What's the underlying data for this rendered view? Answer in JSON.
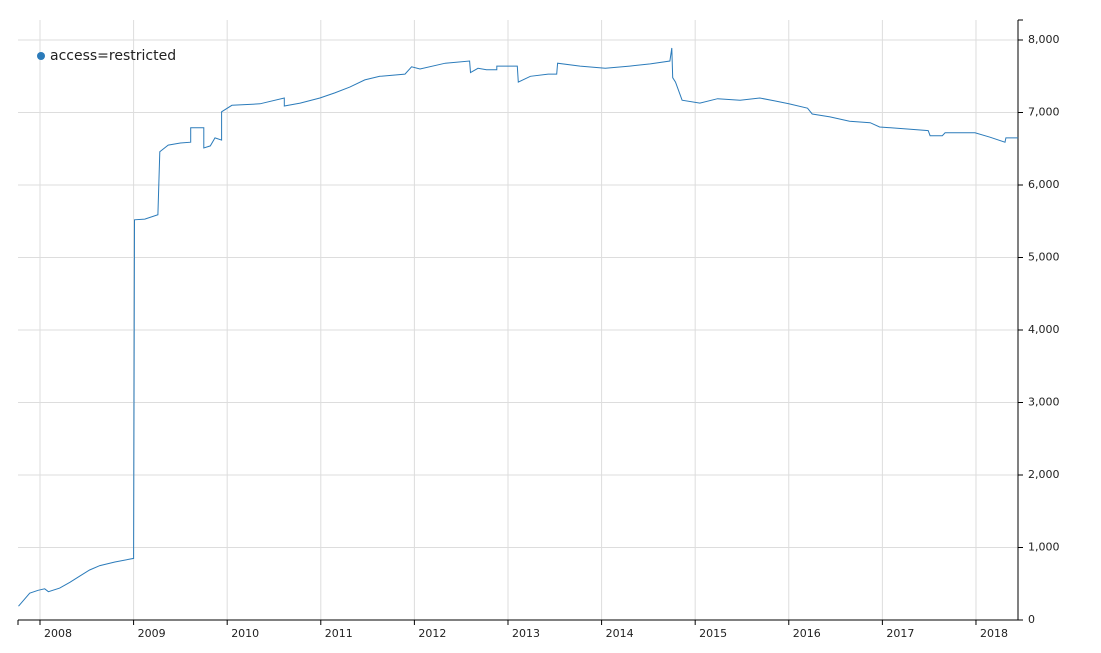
{
  "chart_data": {
    "type": "line",
    "series": [
      {
        "name": "access=restricted",
        "color": "#2b7bba",
        "x": [
          2007.77,
          2007.89,
          2007.98,
          2008.05,
          2008.09,
          2008.21,
          2008.32,
          2008.43,
          2008.53,
          2008.64,
          2008.8,
          2009.0,
          2009.01,
          2009.12,
          2009.26,
          2009.28,
          2009.37,
          2009.5,
          2009.61,
          2009.61,
          2009.71,
          2009.75,
          2009.75,
          2009.82,
          2009.87,
          2009.94,
          2009.94,
          2010.05,
          2010.35,
          2010.61,
          2010.61,
          2010.78,
          2010.99,
          2011.15,
          2011.31,
          2011.47,
          2011.63,
          2011.9,
          2011.97,
          2012.06,
          2012.33,
          2012.59,
          2012.6,
          2012.68,
          2012.77,
          2012.88,
          2012.88,
          2013.1,
          2013.11,
          2013.24,
          2013.43,
          2013.52,
          2013.53,
          2013.77,
          2014.04,
          2014.3,
          2014.52,
          2014.73,
          2014.75,
          2014.76,
          2014.79,
          2014.86,
          2015.05,
          2015.24,
          2015.48,
          2015.69,
          2015.85,
          2016.0,
          2016.2,
          2016.25,
          2016.44,
          2016.65,
          2016.87,
          2016.97,
          2017.3,
          2017.49,
          2017.51,
          2017.64,
          2017.67,
          2017.99,
          2018.15,
          2018.31,
          2018.32,
          2018.45
        ],
        "values": [
          190,
          370,
          410,
          430,
          390,
          440,
          520,
          610,
          690,
          750,
          800,
          850,
          5520,
          5530,
          5590,
          6460,
          6550,
          6580,
          6590,
          6790,
          6790,
          6790,
          6510,
          6540,
          6650,
          6620,
          7010,
          7100,
          7120,
          7200,
          7090,
          7130,
          7200,
          7270,
          7350,
          7450,
          7500,
          7530,
          7630,
          7600,
          7680,
          7710,
          7550,
          7610,
          7590,
          7590,
          7640,
          7640,
          7420,
          7500,
          7530,
          7530,
          7680,
          7640,
          7610,
          7640,
          7670,
          7710,
          7890,
          7480,
          7420,
          7170,
          7130,
          7190,
          7170,
          7200,
          7160,
          7120,
          7060,
          6980,
          6940,
          6880,
          6860,
          6800,
          6770,
          6750,
          6680,
          6680,
          6720,
          6720,
          6660,
          6590,
          6650,
          6650
        ]
      }
    ],
    "xlim": [
      2007.765,
      2018.449
    ],
    "xticks": [
      2008,
      2009,
      2010,
      2011,
      2012,
      2013,
      2014,
      2015,
      2016,
      2017,
      2018
    ],
    "ylim": [
      0,
      8276
    ],
    "yticks": [
      0,
      {
        "value": 1000,
        "label": "1,000"
      },
      {
        "value": 2000,
        "label": "2,000"
      },
      {
        "value": 3000,
        "label": "3,000"
      },
      {
        "value": 4000,
        "label": "4,000"
      },
      {
        "value": 5000,
        "label": "5,000"
      },
      {
        "value": 6000,
        "label": "6,000"
      },
      {
        "value": 7000,
        "label": "7,000"
      },
      {
        "value": 8000,
        "label": "8,000"
      }
    ],
    "grid": true,
    "legend": "upper left"
  }
}
